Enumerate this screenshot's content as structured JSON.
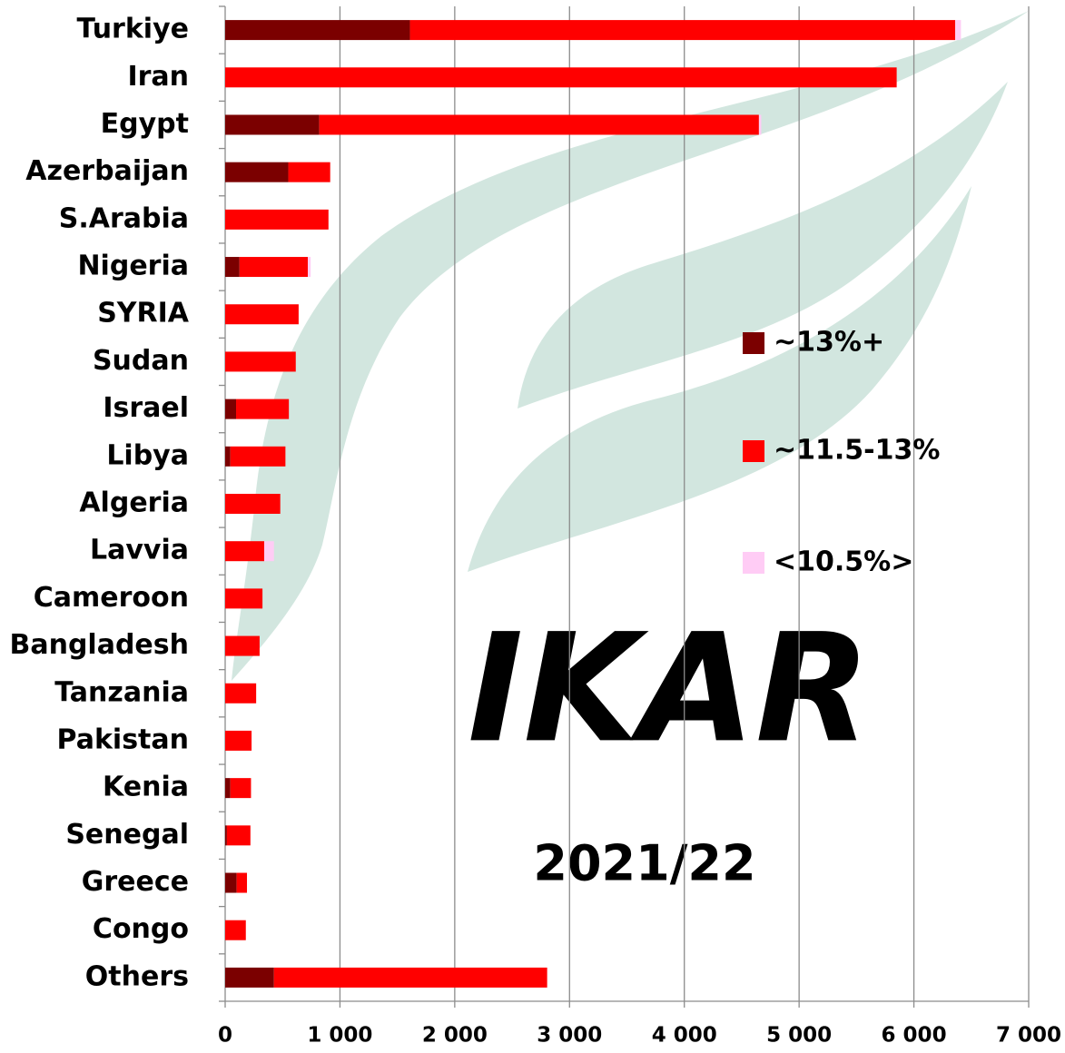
{
  "chart_data": {
    "type": "stacked-bar-horizontal",
    "categories": [
      "Turkiye",
      "Iran",
      "Egypt",
      "Azerbaijan",
      "S.Arabia",
      "Nigeria",
      "SYRIA",
      "Sudan",
      "Israel",
      "Libya",
      "Algeria",
      "Lavvia",
      "Cameroon",
      "Bangladesh",
      "Tanzania",
      "Pakistan",
      "Kenia",
      "Senegal",
      "Greece",
      "Congo",
      "Others"
    ],
    "series": [
      {
        "name": "~13%+",
        "color": "#7b0000",
        "values": [
          1610,
          0,
          820,
          550,
          0,
          125,
          0,
          0,
          95,
          45,
          0,
          0,
          0,
          0,
          0,
          0,
          45,
          15,
          100,
          0,
          425
        ]
      },
      {
        "name": "~11.5-13%",
        "color": "#ff0000",
        "values": [
          4750,
          5850,
          3830,
          365,
          900,
          595,
          640,
          615,
          460,
          480,
          480,
          340,
          325,
          300,
          270,
          230,
          180,
          205,
          90,
          180,
          2380
        ]
      },
      {
        "name": "<10.5%>",
        "color": "#ffccf5",
        "values": [
          50,
          0,
          20,
          0,
          0,
          25,
          0,
          0,
          0,
          0,
          0,
          85,
          0,
          0,
          0,
          0,
          0,
          0,
          0,
          0,
          0
        ]
      }
    ],
    "xlim": [
      0,
      7000
    ],
    "xticks": [
      0,
      {
        "value": 1000,
        "label": "1 000"
      },
      {
        "value": 2000,
        "label": "2 000"
      },
      {
        "value": 3000,
        "label": "3 000"
      },
      {
        "value": 4000,
        "label": "4 000"
      },
      {
        "value": 5000,
        "label": "5 000"
      },
      {
        "value": 6000,
        "label": "6 000"
      },
      {
        "value": 7000,
        "label": "7 000"
      }
    ],
    "grid": true,
    "annotation": "2021/22",
    "watermark": "IKAR"
  }
}
